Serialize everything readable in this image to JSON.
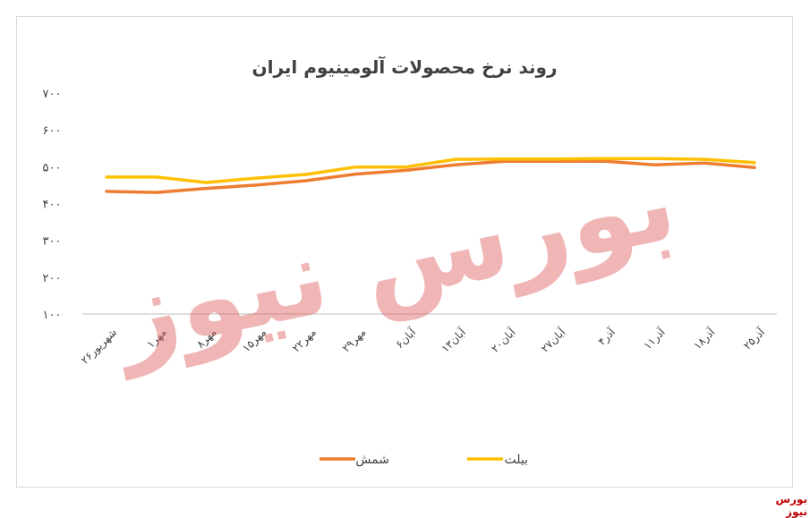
{
  "watermark": "بورس نیوز",
  "source": "بورس نیوز",
  "chart_data": {
    "type": "line",
    "title": "روند نرخ محصولات آلومینیوم ایران",
    "categories": [
      "۲۶شهریور",
      "۱مهر",
      "۸مهر",
      "۱۵مهر",
      "۲۲مهر",
      "۲۹مهر",
      "۶آبان",
      "۱۳آبان",
      "۲۰آبان",
      "۲۷آبان",
      "۴آذر",
      "۱۱آذر",
      "۱۸آذر",
      "۲۵آذر"
    ],
    "yticks": [
      "۱۰۰",
      "۲۰۰",
      "۳۰۰",
      "۴۰۰",
      "۵۰۰",
      "۶۰۰",
      "۷۰۰"
    ],
    "ylim": [
      100,
      700
    ],
    "grid": false,
    "legend_position": "bottom",
    "series": [
      {
        "name": "شمش",
        "color": "#ed7d31",
        "values": [
          433,
          430,
          441,
          450,
          462,
          480,
          490,
          505,
          515,
          515,
          515,
          505,
          510,
          498
        ]
      },
      {
        "name": "بیلت",
        "color": "#ffc000",
        "values": [
          472,
          472,
          457,
          469,
          479,
          499,
          499,
          520,
          521,
          521,
          522,
          522,
          520,
          511
        ]
      }
    ]
  }
}
